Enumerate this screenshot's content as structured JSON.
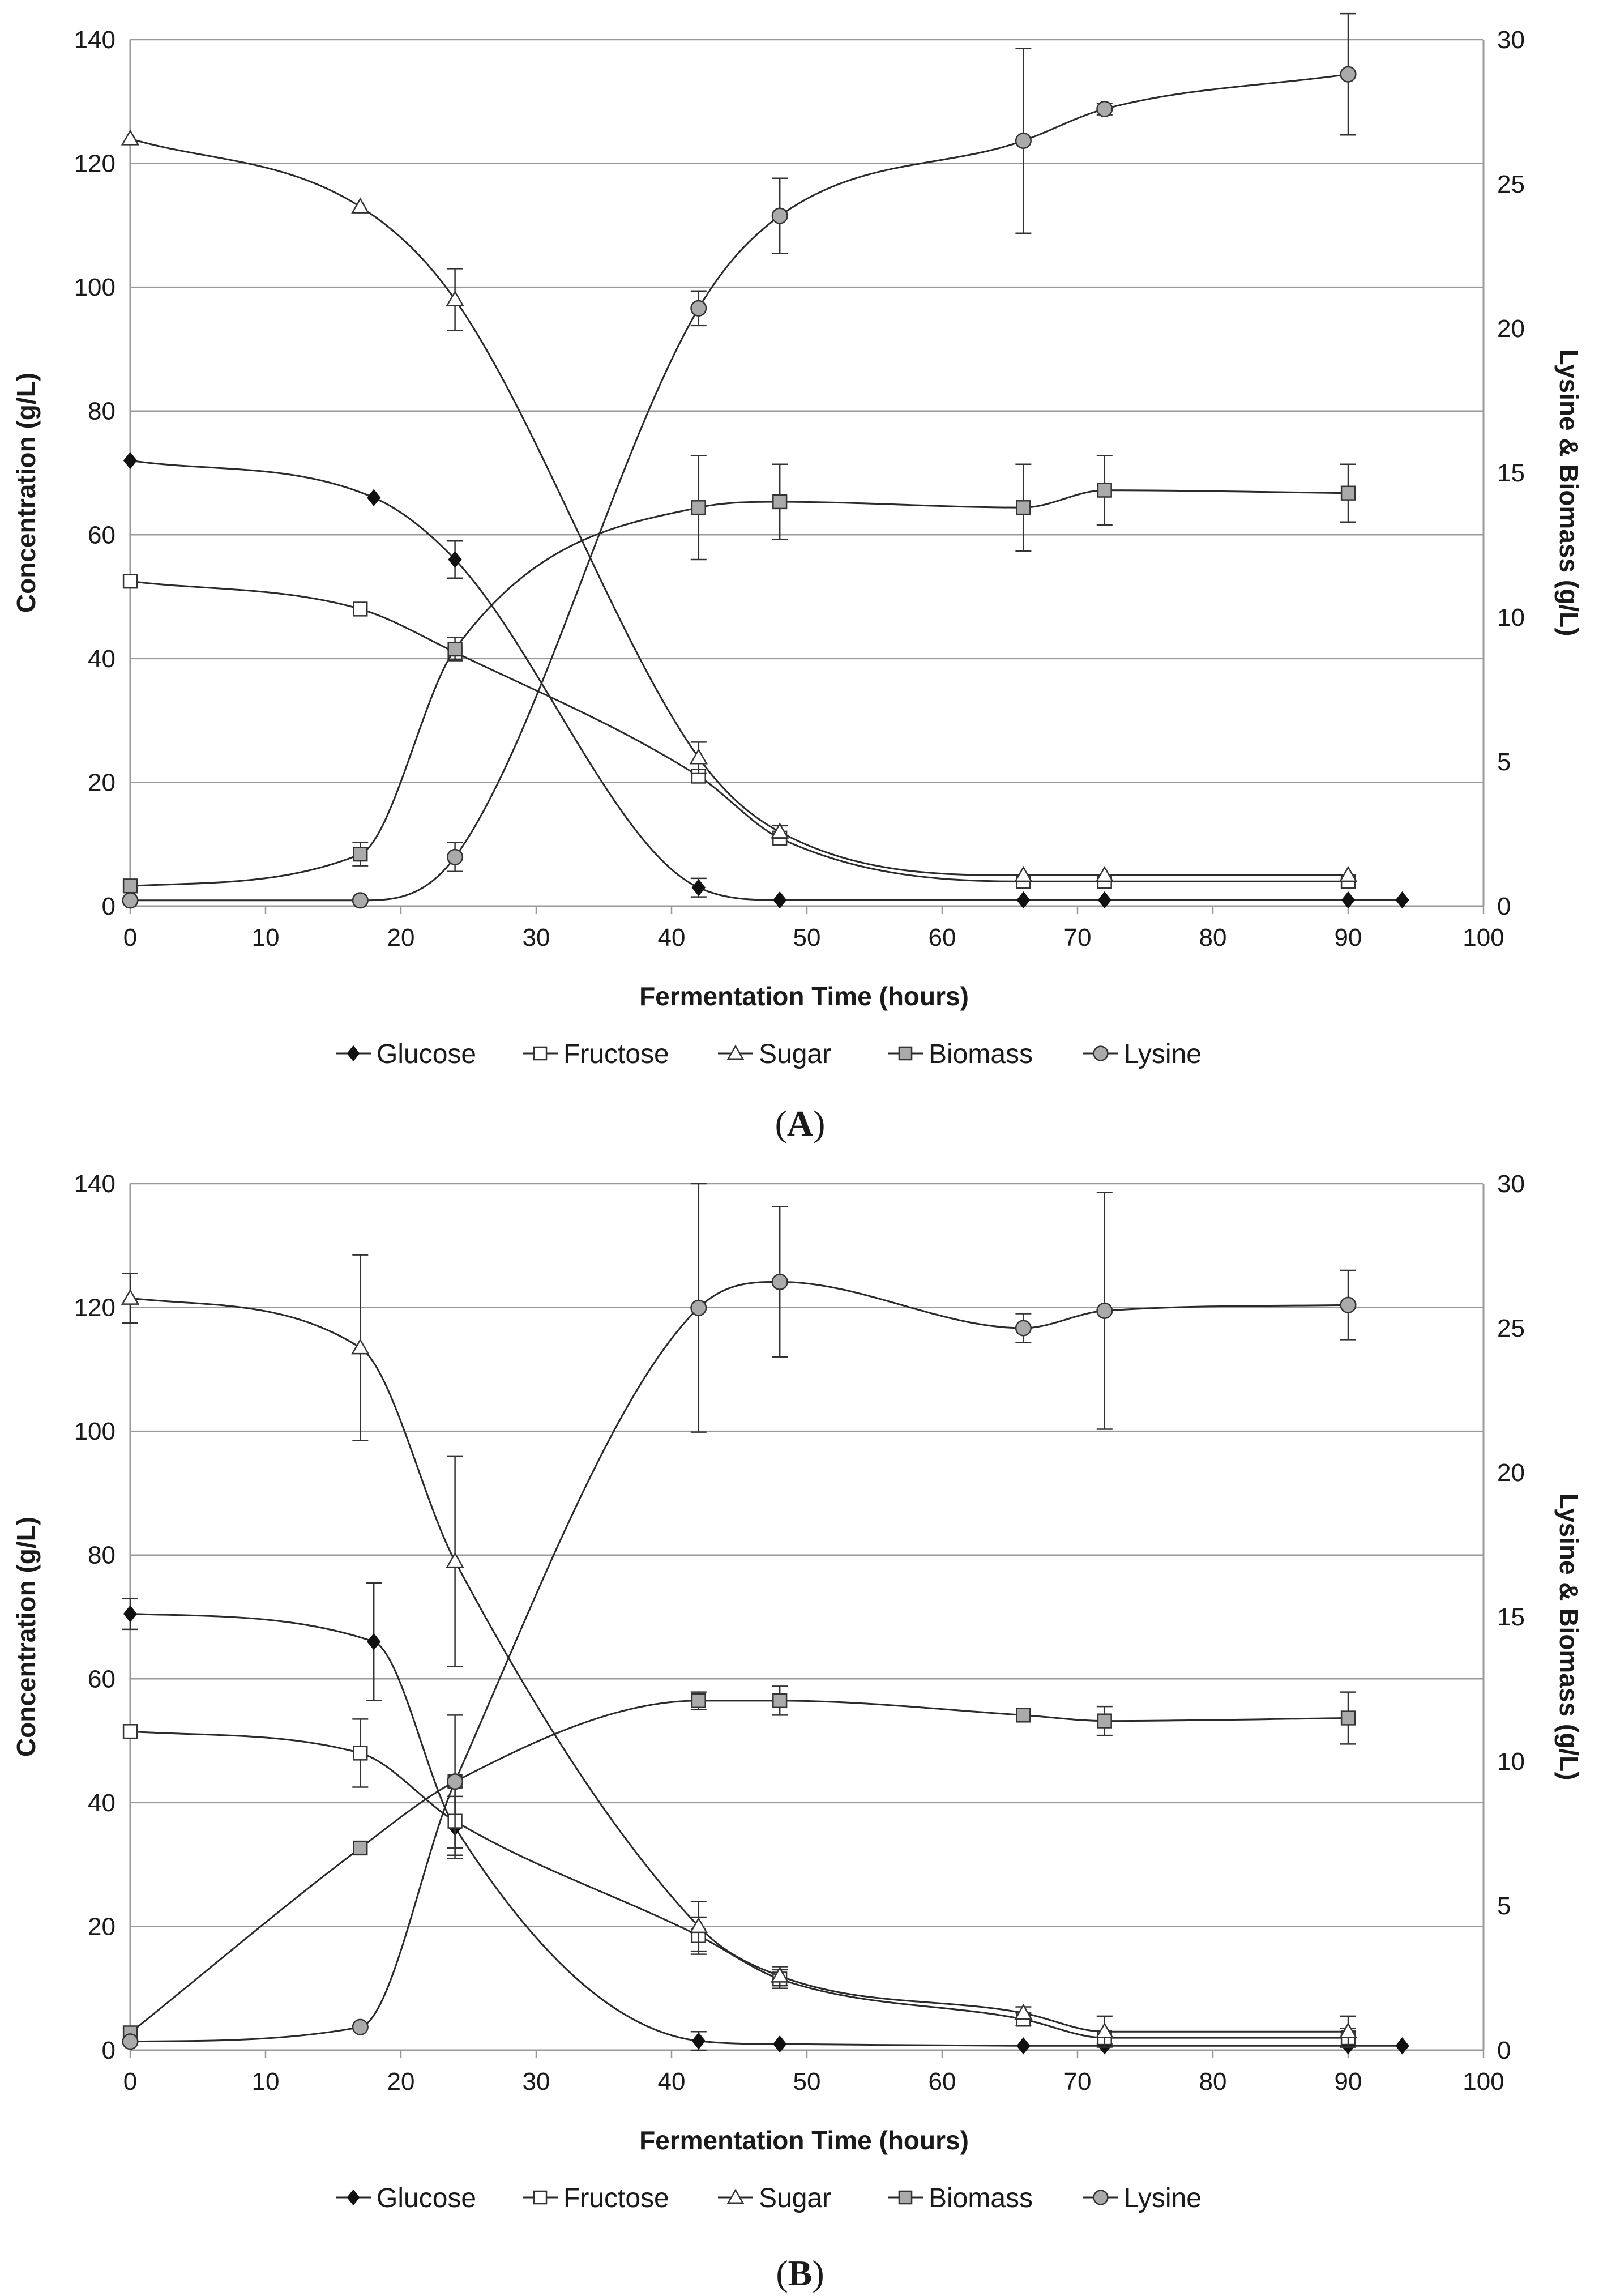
{
  "chart_data": [
    {
      "type": "line",
      "panel_label": "A",
      "xlabel": "Fermentation Time (hours)",
      "ylabel": "Concentration (g/L)",
      "y2label": "Lysine & Biomass (g/L)",
      "xlim": [
        0,
        100
      ],
      "ylim": [
        0,
        140
      ],
      "y2lim": [
        0,
        30
      ],
      "x_ticks": [
        "0",
        "10",
        "20",
        "30",
        "40",
        "50",
        "60",
        "70",
        "80",
        "90",
        "100"
      ],
      "y_ticks": [
        "0",
        "20",
        "40",
        "60",
        "80",
        "100",
        "120",
        "140"
      ],
      "y2_ticks": [
        "0",
        "5",
        "10",
        "15",
        "20",
        "25",
        "30"
      ],
      "grid": true,
      "legend": [
        "Glucose",
        "Fructose",
        "Sugar",
        "Biomass",
        "Lysine"
      ],
      "series": [
        {
          "name": "Glucose",
          "axis": "left",
          "marker": "diamond",
          "x": [
            0,
            18,
            24,
            42,
            48,
            66,
            72,
            90,
            94
          ],
          "values": [
            72,
            66,
            56,
            3,
            1,
            1,
            1,
            1,
            1
          ],
          "err": [
            0,
            0,
            3,
            1.5,
            0,
            0,
            0,
            0,
            0
          ]
        },
        {
          "name": "Fructose",
          "axis": "left",
          "marker": "square-open",
          "x": [
            0,
            17,
            24,
            42,
            48,
            66,
            72,
            90
          ],
          "values": [
            52.5,
            48,
            41,
            21,
            11,
            4,
            4,
            4
          ],
          "err": [
            0,
            0,
            0,
            0,
            0,
            0,
            0,
            0
          ]
        },
        {
          "name": "Sugar",
          "axis": "left",
          "marker": "triangle-open",
          "x": [
            0,
            17,
            24,
            42,
            48,
            66,
            72,
            90
          ],
          "values": [
            124,
            113,
            98,
            24,
            12,
            5,
            5,
            5
          ],
          "err": [
            0,
            0,
            5,
            2.5,
            1,
            0,
            0,
            0
          ]
        },
        {
          "name": "Biomass",
          "axis": "right",
          "marker": "square-gray",
          "x": [
            0,
            17,
            24,
            42,
            48,
            66,
            72,
            90
          ],
          "values": [
            0.7,
            1.8,
            8.9,
            13.8,
            14,
            13.8,
            14.4,
            14.3
          ],
          "err": [
            0,
            0.4,
            0.4,
            1.8,
            1.3,
            1.5,
            1.2,
            1
          ]
        },
        {
          "name": "Lysine",
          "axis": "right",
          "marker": "circle-gray",
          "x": [
            0,
            17,
            24,
            42,
            48,
            66,
            72,
            90
          ],
          "values": [
            0.2,
            0.2,
            1.7,
            20.7,
            23.9,
            26.5,
            27.6,
            28.8
          ],
          "err": [
            0,
            0,
            0.5,
            0.6,
            1.3,
            3.2,
            0.2,
            2.1
          ]
        }
      ]
    },
    {
      "type": "line",
      "panel_label": "B",
      "xlabel": "Fermentation Time (hours)",
      "ylabel": "Concentration (g/L)",
      "y2label": "Lysine & Biomass (g/L)",
      "xlim": [
        0,
        100
      ],
      "ylim": [
        0,
        140
      ],
      "y2lim": [
        0,
        30
      ],
      "x_ticks": [
        "0",
        "10",
        "20",
        "30",
        "40",
        "50",
        "60",
        "70",
        "80",
        "90",
        "100"
      ],
      "y_ticks": [
        "0",
        "20",
        "40",
        "60",
        "80",
        "100",
        "120",
        "140"
      ],
      "y2_ticks": [
        "0",
        "5",
        "10",
        "15",
        "20",
        "25",
        "30"
      ],
      "grid": true,
      "legend": [
        "Glucose",
        "Fructose",
        "Sugar",
        "Biomass",
        "Lysine"
      ],
      "series": [
        {
          "name": "Glucose",
          "axis": "left",
          "marker": "diamond",
          "x": [
            0,
            18,
            24,
            42,
            48,
            66,
            72,
            90,
            94
          ],
          "values": [
            70.5,
            66,
            36,
            1.5,
            1,
            0.7,
            0.7,
            0.7,
            0.7
          ],
          "err": [
            2.5,
            9.5,
            5,
            1.5,
            0,
            0,
            0,
            0,
            0
          ]
        },
        {
          "name": "Fructose",
          "axis": "left",
          "marker": "square-open",
          "x": [
            0,
            17,
            24,
            42,
            48,
            66,
            72,
            90
          ],
          "values": [
            51.5,
            48,
            37,
            18.5,
            11.5,
            5,
            2,
            2
          ],
          "err": [
            0,
            5.5,
            5.5,
            3,
            1.5,
            1,
            1,
            1.5
          ]
        },
        {
          "name": "Sugar",
          "axis": "left",
          "marker": "triangle-open",
          "x": [
            0,
            17,
            24,
            42,
            48,
            66,
            72,
            90
          ],
          "values": [
            121.5,
            113.5,
            79,
            20,
            12,
            6,
            3,
            3
          ],
          "err": [
            4,
            15,
            17,
            4,
            1.5,
            1,
            2.5,
            2.5
          ]
        },
        {
          "name": "Biomass",
          "axis": "right",
          "marker": "square-gray",
          "x": [
            0,
            17,
            24,
            42,
            48,
            66,
            72,
            90
          ],
          "values": [
            0.6,
            7,
            9.3,
            12.1,
            12.1,
            11.6,
            11.4,
            11.5
          ],
          "err": [
            0,
            0,
            0,
            0.3,
            0.5,
            0,
            0.5,
            0.9
          ]
        },
        {
          "name": "Lysine",
          "axis": "right",
          "marker": "circle-gray",
          "x": [
            0,
            17,
            24,
            42,
            48,
            66,
            72,
            90
          ],
          "values": [
            0.3,
            0.8,
            9.3,
            25.7,
            26.6,
            25,
            25.6,
            25.8
          ],
          "err": [
            0,
            0,
            2.3,
            4.3,
            2.6,
            0.5,
            4.1,
            1.2
          ]
        }
      ]
    }
  ]
}
